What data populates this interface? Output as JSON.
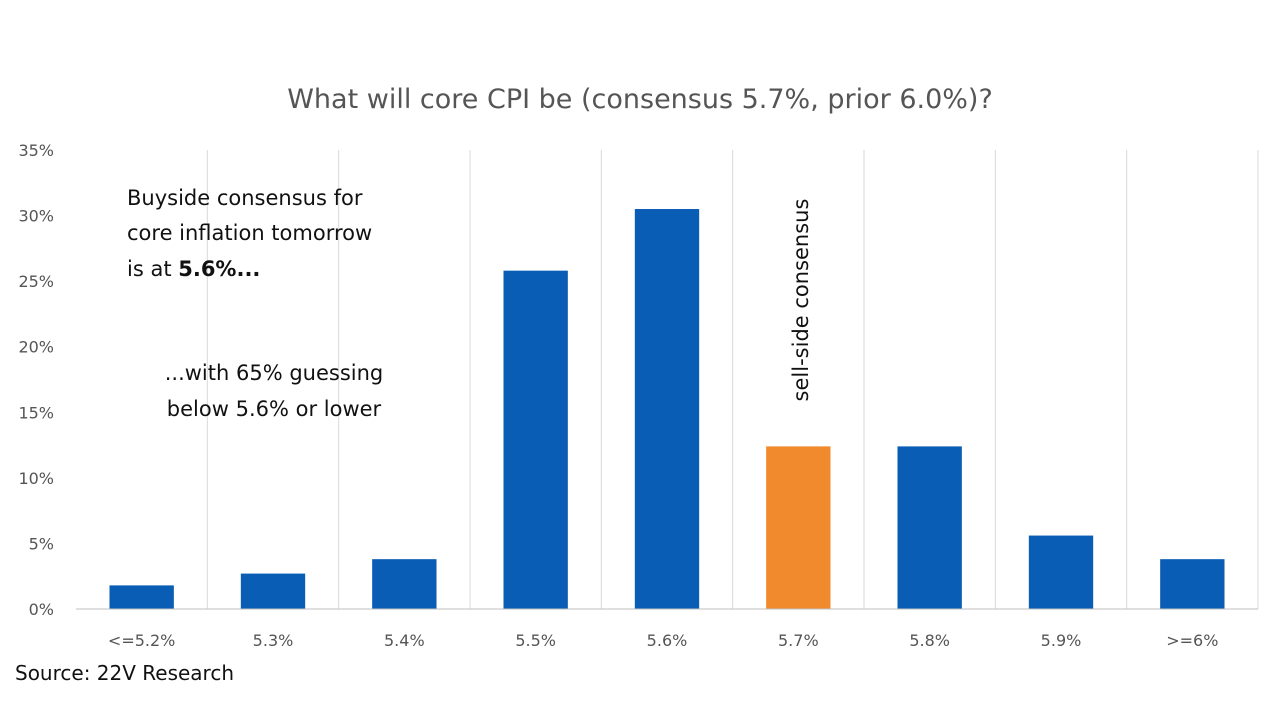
{
  "chart_data": {
    "type": "bar",
    "title": "What will core CPI be (consensus 5.7%, prior 6.0%)?",
    "categories": [
      "<=5.2%",
      "5.3%",
      "5.4%",
      "5.5%",
      "5.6%",
      "5.7%",
      "5.8%",
      "5.9%",
      ">=6%"
    ],
    "values": [
      1.8,
      2.7,
      3.8,
      25.8,
      30.5,
      12.4,
      12.4,
      5.6,
      3.8
    ],
    "highlight_index": 5,
    "ylim": [
      0,
      35
    ],
    "yticks": [
      "0%",
      "5%",
      "10%",
      "15%",
      "20%",
      "25%",
      "30%",
      "35%"
    ],
    "xlabel": "",
    "ylabel": "",
    "grid": "vertical",
    "legend": "none",
    "colors": {
      "bar": "#0a5db5",
      "highlight": "#f08a2c",
      "grid": "#d9d9d9",
      "axis": "#bfbfbf"
    },
    "annotations": {
      "note1_lines": [
        "Buyside consensus for",
        "core inflation tomorrow"
      ],
      "note1_prefix": "is at ",
      "note1_bold": "5.6%...",
      "note2_lines": [
        "...with 65% guessing",
        "below 5.6% or lower"
      ],
      "vertical_label": "sell-side consensus"
    }
  },
  "source": "Source:  22V Research"
}
